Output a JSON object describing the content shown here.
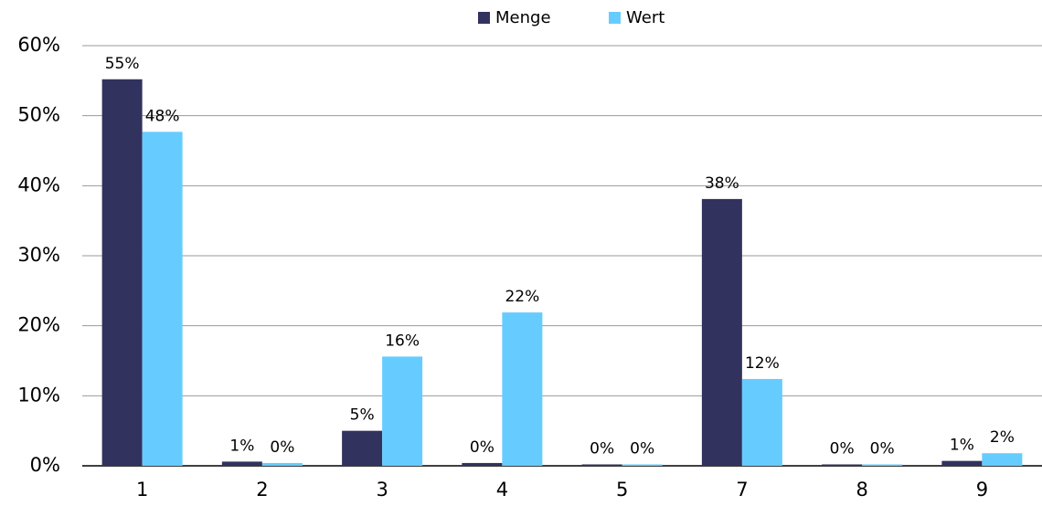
{
  "chart_data": {
    "type": "bar",
    "categories": [
      "1",
      "2",
      "3",
      "4",
      "5",
      "7",
      "8",
      "9"
    ],
    "series": [
      {
        "name": "Menge",
        "color": "#32325e",
        "values": [
          55.2,
          0.6,
          5.0,
          0.4,
          0.2,
          38.1,
          0.2,
          0.7
        ],
        "value_labels": [
          "55%",
          "1%",
          "5%",
          "0%",
          "0%",
          "38%",
          "0%",
          "1%"
        ]
      },
      {
        "name": "Wert",
        "color": "#66ccff",
        "values": [
          47.7,
          0.4,
          15.6,
          21.9,
          0.2,
          12.4,
          0.2,
          1.8
        ],
        "value_labels": [
          "48%",
          "0%",
          "16%",
          "22%",
          "0%",
          "12%",
          "0%",
          "2%"
        ]
      }
    ],
    "ylim": [
      0,
      60
    ],
    "yticks": [
      {
        "value": 0,
        "label": "0%"
      },
      {
        "value": 10,
        "label": "10%"
      },
      {
        "value": 20,
        "label": "20%"
      },
      {
        "value": 30,
        "label": "30%"
      },
      {
        "value": 40,
        "label": "40%"
      },
      {
        "value": 50,
        "label": "50%"
      },
      {
        "value": 60,
        "label": "60%"
      }
    ],
    "grid": true,
    "legend": "top"
  }
}
